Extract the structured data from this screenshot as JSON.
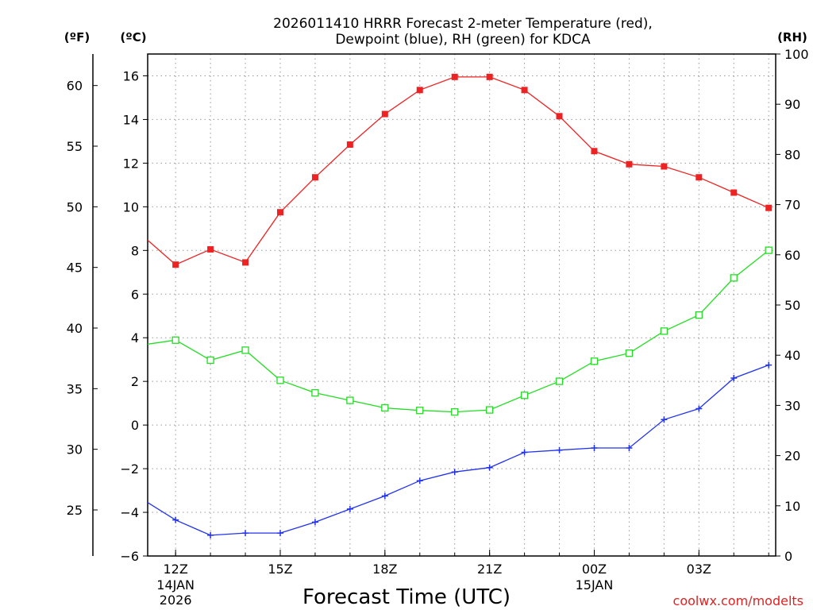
{
  "chart_data": {
    "type": "line",
    "title_line1": "2026011410 HRRR Forecast 2-meter Temperature (red),",
    "title_line2": "Dewpoint (blue), RH (green) for KDCA",
    "xlabel": "Forecast Time (UTC)",
    "left_outer_unit": "(ºF)",
    "left_inner_unit": "(ºC)",
    "right_unit": "(RH)",
    "credit": "coolwx.com/modelts",
    "hours": [
      11,
      12,
      13,
      14,
      15,
      16,
      17,
      18,
      19,
      20,
      21,
      22,
      23,
      24,
      25,
      26,
      27,
      28,
      29
    ],
    "x_ticks": [
      {
        "hour": 12,
        "label": "12Z",
        "sub1": "14JAN",
        "sub2": "2026"
      },
      {
        "hour": 15,
        "label": "15Z",
        "sub1": "",
        "sub2": ""
      },
      {
        "hour": 18,
        "label": "18Z",
        "sub1": "",
        "sub2": ""
      },
      {
        "hour": 21,
        "label": "21Z",
        "sub1": "",
        "sub2": ""
      },
      {
        "hour": 24,
        "label": "00Z",
        "sub1": "15JAN",
        "sub2": ""
      },
      {
        "hour": 27,
        "label": "03Z",
        "sub1": "",
        "sub2": ""
      }
    ],
    "x_range": [
      11.2,
      29.2
    ],
    "celsius_ticks": [
      "-6",
      "-4",
      "-2",
      "0",
      "2",
      "4",
      "6",
      "8",
      "10",
      "12",
      "14",
      "16"
    ],
    "fahrenheit_ticks": [
      "25",
      "30",
      "35",
      "40",
      "45",
      "50",
      "55",
      "60"
    ],
    "rh_ticks": [
      "0",
      "10",
      "20",
      "30",
      "40",
      "50",
      "60",
      "70",
      "80",
      "90",
      "100"
    ],
    "ylim_celsius": [
      -6.0,
      17.0
    ],
    "ylim_rh": [
      0,
      100
    ],
    "series": [
      {
        "name": "Temperature",
        "unit": "C",
        "color": "#ee2222",
        "marker": "filled-square",
        "values": [
          8.75,
          7.35,
          8.05,
          7.45,
          9.75,
          11.35,
          12.85,
          14.25,
          15.35,
          15.95,
          15.95,
          15.35,
          14.15,
          12.55,
          11.95,
          11.85,
          11.35,
          10.65,
          9.95
        ]
      },
      {
        "name": "Dewpoint",
        "unit": "C",
        "color": "#2233ee",
        "marker": "plus",
        "values": [
          -3.35,
          -4.35,
          -5.05,
          -4.95,
          -4.95,
          -4.45,
          -3.85,
          -3.25,
          -2.55,
          -2.15,
          -1.95,
          -1.25,
          -1.15,
          -1.05,
          -1.05,
          0.25,
          0.75,
          2.15,
          2.75
        ]
      },
      {
        "name": "RH",
        "unit": "%",
        "color": "#22dd22",
        "marker": "open-square",
        "values": [
          42,
          43,
          39,
          41,
          35,
          32.5,
          31,
          29.5,
          29,
          28.7,
          29.1,
          32,
          34.8,
          38.8,
          40.4,
          44.8,
          48,
          55.4,
          60.9
        ]
      }
    ]
  }
}
